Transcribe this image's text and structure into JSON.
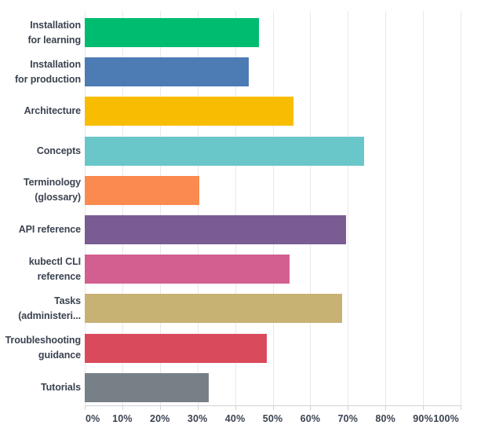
{
  "chart_data": {
    "type": "bar",
    "orientation": "horizontal",
    "categories": [
      "Installation\nfor learning",
      "Installation\nfor production",
      "Architecture",
      "Concepts",
      "Terminology\n(glossary)",
      "API reference",
      "kubectl CLI\nreference",
      "Tasks\n(administeri...",
      "Troubleshooting\nguidance",
      "Tutorials"
    ],
    "values": [
      46.3,
      43.6,
      55.5,
      74.4,
      30.4,
      69.5,
      54.5,
      68.5,
      48.4,
      33.0
    ],
    "unit": "%",
    "bar_colors": [
      "#00BC70",
      "#4D7CB5",
      "#F8BD00",
      "#69C7CA",
      "#FB8A51",
      "#7A5C93",
      "#D35E90",
      "#C7B274",
      "#D94B5C",
      "#778087"
    ],
    "x_tick_labels": [
      "0%",
      "10%",
      "20%",
      "30%",
      "40%",
      "50%",
      "60%",
      "70%",
      "80%",
      "90%",
      "100%"
    ],
    "xlim": [
      0,
      100
    ],
    "grid": "vertical",
    "legend": "none"
  },
  "style": {
    "text_color": "#3B4350",
    "gridline_color": "#E8E8EA",
    "axis_line_color": "#CFD3D7",
    "background": "#FFFFFF"
  }
}
